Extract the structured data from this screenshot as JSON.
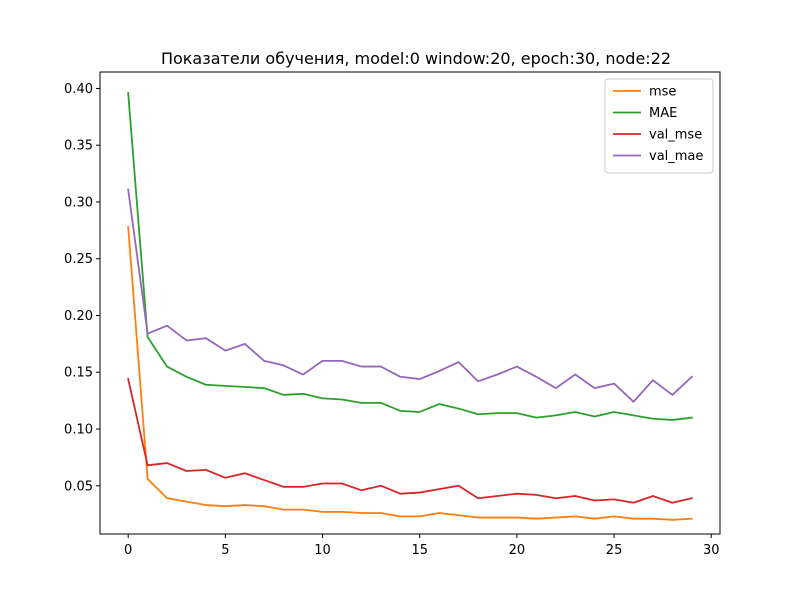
{
  "chart_data": {
    "type": "line",
    "title": "Показатели обучения, model:0 window:20, epoch:30, node:22",
    "xlabel": "",
    "ylabel": "",
    "xlim": [
      -1.45,
      30.45
    ],
    "ylim": [
      0.0075,
      0.4145
    ],
    "xticks": [
      0,
      5,
      10,
      15,
      20,
      25,
      30
    ],
    "xtick_labels": [
      "0",
      "5",
      "10",
      "15",
      "20",
      "25",
      "30"
    ],
    "yticks": [
      0.05,
      0.1,
      0.15,
      0.2,
      0.25,
      0.3,
      0.35,
      0.4
    ],
    "ytick_labels": [
      "0.05",
      "0.10",
      "0.15",
      "0.20",
      "0.25",
      "0.30",
      "0.35",
      "0.40"
    ],
    "grid": false,
    "legend_position": "upper right",
    "x": [
      0,
      1,
      2,
      3,
      4,
      5,
      6,
      7,
      8,
      9,
      10,
      11,
      12,
      13,
      14,
      15,
      16,
      17,
      18,
      19,
      20,
      21,
      22,
      23,
      24,
      25,
      26,
      27,
      28,
      29
    ],
    "series": [
      {
        "name": "mse",
        "color": "#ff7f0e",
        "values": [
          0.278,
          0.056,
          0.039,
          0.036,
          0.033,
          0.032,
          0.033,
          0.032,
          0.029,
          0.029,
          0.027,
          0.027,
          0.026,
          0.026,
          0.023,
          0.023,
          0.026,
          0.024,
          0.022,
          0.022,
          0.022,
          0.021,
          0.022,
          0.023,
          0.021,
          0.023,
          0.021,
          0.021,
          0.02,
          0.021
        ]
      },
      {
        "name": "MAE",
        "color": "#2ca02c",
        "values": [
          0.396,
          0.181,
          0.155,
          0.146,
          0.139,
          0.138,
          0.137,
          0.136,
          0.13,
          0.131,
          0.127,
          0.126,
          0.123,
          0.123,
          0.116,
          0.115,
          0.122,
          0.118,
          0.113,
          0.114,
          0.114,
          0.11,
          0.112,
          0.115,
          0.111,
          0.115,
          0.112,
          0.109,
          0.108,
          0.11
        ]
      },
      {
        "name": "val_mse",
        "color": "#d62728",
        "values": [
          0.144,
          0.068,
          0.07,
          0.063,
          0.064,
          0.057,
          0.061,
          0.055,
          0.049,
          0.049,
          0.052,
          0.052,
          0.046,
          0.05,
          0.043,
          0.044,
          0.047,
          0.05,
          0.039,
          0.041,
          0.043,
          0.042,
          0.039,
          0.041,
          0.037,
          0.038,
          0.035,
          0.041,
          0.035,
          0.039
        ]
      },
      {
        "name": "val_mae",
        "color": "#9467bd",
        "values": [
          0.311,
          0.184,
          0.191,
          0.178,
          0.18,
          0.169,
          0.175,
          0.16,
          0.156,
          0.148,
          0.16,
          0.16,
          0.155,
          0.155,
          0.146,
          0.144,
          0.151,
          0.159,
          0.142,
          0.148,
          0.155,
          0.146,
          0.136,
          0.148,
          0.136,
          0.14,
          0.124,
          0.143,
          0.13,
          0.146
        ]
      }
    ]
  }
}
